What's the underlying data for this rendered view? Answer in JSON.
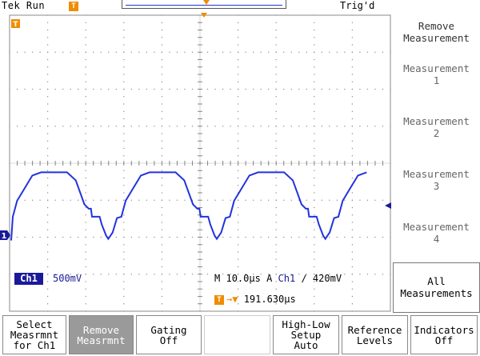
{
  "status_bar": {
    "run_status": "Tek Run",
    "trigger_state": "Trig'd",
    "trigger_marker_label": "T"
  },
  "channel": {
    "name": "Ch1",
    "scale": "500mV",
    "color": "#1a1a99",
    "ground_marker_label": "1"
  },
  "timebase": {
    "mode": "M",
    "time_per_div": "10.0µs",
    "label_a": "A",
    "trigger_source": "Ch1",
    "slope_glyph": "∕",
    "trigger_level": "420mV",
    "trigger_delay": "191.630µs"
  },
  "side_menu": {
    "title": "Remove\nMeasurement",
    "items": [
      "Measurement\n1",
      "Measurement\n2",
      "Measurement\n3",
      "Measurement\n4"
    ],
    "all_label": "All\nMeasurements"
  },
  "bottom_menu": {
    "buttons": [
      "Select\nMeasrmnt\nfor Ch1",
      "Remove\nMeasrmnt",
      "Gating\nOff",
      "",
      "High-Low\nSetup\nAuto",
      "Reference\nLevels",
      "Indicators\nOff"
    ]
  },
  "waveform": {
    "color": "#2233dd",
    "period_us": 28.5,
    "high_level_v": 0.85,
    "low_level_v": -0.05
  }
}
